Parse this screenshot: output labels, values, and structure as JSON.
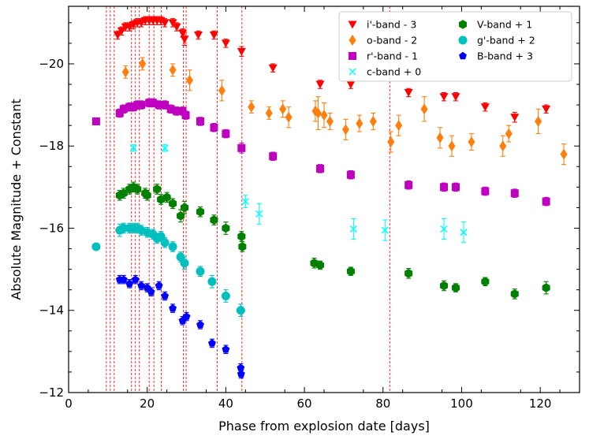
{
  "chart_data": {
    "type": "scatter",
    "title": "",
    "xlabel": "Phase from explosion date [days]",
    "ylabel": "Absolute Magnitude + Constant",
    "xlim": [
      0,
      130
    ],
    "ylim": [
      -12,
      -21.4
    ],
    "y_inverted": true,
    "legend_position": "top-right",
    "grid": false,
    "xticks": [
      0,
      20,
      40,
      60,
      80,
      100,
      120
    ],
    "xtick_labels": [
      "0",
      "20",
      "40",
      "60",
      "80",
      "100",
      "120"
    ],
    "yticks": [
      -20,
      -18,
      -16,
      -14,
      -12
    ],
    "ytick_labels": [
      "−20",
      "−18",
      "−16",
      "−14",
      "−12"
    ],
    "vlines": [
      9.6,
      10.6,
      11.6,
      16.0,
      17.0,
      18.0,
      20.5,
      21.7,
      23.6,
      29.2,
      29.9,
      37.8,
      44.1,
      81.7
    ],
    "series": [
      {
        "name": "i'-band - 3",
        "color": "#ff0000",
        "marker": "triangle-down",
        "points": [
          [
            12.5,
            -20.7,
            0.1
          ],
          [
            13.5,
            -20.8,
            0.1
          ],
          [
            14.5,
            -20.9,
            0.1
          ],
          [
            15.5,
            -20.9,
            0.1
          ],
          [
            16.5,
            -20.95,
            0.1
          ],
          [
            17.5,
            -21.0,
            0.1
          ],
          [
            18.5,
            -21.0,
            0.1
          ],
          [
            19.5,
            -21.05,
            0.1
          ],
          [
            20.5,
            -21.05,
            0.1
          ],
          [
            21.5,
            -21.05,
            0.1
          ],
          [
            22.5,
            -21.05,
            0.1
          ],
          [
            23.5,
            -21.05,
            0.1
          ],
          [
            24.5,
            -21.0,
            0.1
          ],
          [
            26.5,
            -21.0,
            0.1
          ],
          [
            27.5,
            -20.9,
            0.1
          ],
          [
            29.0,
            -20.75,
            0.1
          ],
          [
            29.5,
            -20.6,
            0.15
          ],
          [
            33.0,
            -20.7,
            0.1
          ],
          [
            37.0,
            -20.7,
            0.1
          ],
          [
            40.0,
            -20.5,
            0.1
          ],
          [
            44.0,
            -20.3,
            0.12
          ],
          [
            52.0,
            -19.9,
            0.1
          ],
          [
            64.0,
            -19.5,
            0.1
          ],
          [
            71.8,
            -19.5,
            0.1
          ],
          [
            86.5,
            -19.3,
            0.1
          ],
          [
            95.5,
            -19.2,
            0.1
          ],
          [
            98.5,
            -19.2,
            0.1
          ],
          [
            106.0,
            -18.95,
            0.1
          ],
          [
            113.5,
            -18.7,
            0.12
          ],
          [
            121.5,
            -18.9,
            0.1
          ]
        ]
      },
      {
        "name": "o-band - 2",
        "color": "#ff7f0e",
        "marker": "diamond",
        "points": [
          [
            14.5,
            -19.8,
            0.15
          ],
          [
            18.8,
            -20.0,
            0.15
          ],
          [
            26.5,
            -19.85,
            0.15
          ],
          [
            30.8,
            -19.6,
            0.25
          ],
          [
            39.0,
            -19.35,
            0.25
          ],
          [
            46.5,
            -18.95,
            0.15
          ],
          [
            51.0,
            -18.8,
            0.15
          ],
          [
            54.5,
            -18.9,
            0.2
          ],
          [
            56.0,
            -18.7,
            0.25
          ],
          [
            62.8,
            -18.85,
            0.25
          ],
          [
            63.5,
            -18.8,
            0.4
          ],
          [
            65.0,
            -18.75,
            0.3
          ],
          [
            66.5,
            -18.6,
            0.2
          ],
          [
            70.5,
            -18.4,
            0.25
          ],
          [
            74.0,
            -18.55,
            0.2
          ],
          [
            77.5,
            -18.6,
            0.2
          ],
          [
            82.0,
            -18.1,
            0.25
          ],
          [
            84.0,
            -18.5,
            0.25
          ],
          [
            90.5,
            -18.9,
            0.3
          ],
          [
            94.5,
            -18.2,
            0.25
          ],
          [
            97.5,
            -18.0,
            0.25
          ],
          [
            102.5,
            -18.1,
            0.2
          ],
          [
            110.5,
            -18.0,
            0.25
          ],
          [
            112.0,
            -18.3,
            0.2
          ],
          [
            119.5,
            -18.6,
            0.3
          ],
          [
            126.0,
            -17.8,
            0.25
          ]
        ]
      },
      {
        "name": "r'-band - 1",
        "color": "#bf00bf",
        "marker": "square",
        "points": [
          [
            7.0,
            -18.6,
            0
          ],
          [
            13.0,
            -18.8,
            0.1
          ],
          [
            14.0,
            -18.9,
            0.1
          ],
          [
            15.5,
            -18.95,
            0.1
          ],
          [
            16.5,
            -18.95,
            0.1
          ],
          [
            17.5,
            -19.0,
            0.1
          ],
          [
            18.5,
            -19.0,
            0.1
          ],
          [
            20.5,
            -19.05,
            0.1
          ],
          [
            21.5,
            -19.05,
            0.1
          ],
          [
            23.0,
            -19.0,
            0.1
          ],
          [
            24.5,
            -19.0,
            0.1
          ],
          [
            26.0,
            -18.9,
            0.1
          ],
          [
            27.5,
            -18.85,
            0.1
          ],
          [
            29.0,
            -18.85,
            0.1
          ],
          [
            29.8,
            -18.75,
            0.1
          ],
          [
            33.5,
            -18.6,
            0.1
          ],
          [
            37.0,
            -18.45,
            0.1
          ],
          [
            40.0,
            -18.3,
            0.1
          ],
          [
            44.0,
            -17.95,
            0.12
          ],
          [
            52.0,
            -17.75,
            0.1
          ],
          [
            64.0,
            -17.45,
            0.1
          ],
          [
            71.8,
            -17.3,
            0.1
          ],
          [
            86.5,
            -17.05,
            0.1
          ],
          [
            95.5,
            -17.0,
            0.1
          ],
          [
            98.5,
            -17.0,
            0.1
          ],
          [
            106.0,
            -16.9,
            0.1
          ],
          [
            113.5,
            -16.85,
            0.1
          ],
          [
            121.5,
            -16.65,
            0.1
          ]
        ]
      },
      {
        "name": "c-band + 0",
        "color": "#00ffff",
        "marker": "x",
        "points": [
          [
            16.5,
            -17.95,
            0.08
          ],
          [
            24.5,
            -17.95,
            0.08
          ],
          [
            45.0,
            -16.65,
            0.15
          ],
          [
            48.5,
            -16.35,
            0.25
          ],
          [
            72.5,
            -15.98,
            0.25
          ],
          [
            80.5,
            -15.95,
            0.25
          ],
          [
            95.5,
            -15.98,
            0.25
          ],
          [
            100.5,
            -15.9,
            0.25
          ]
        ]
      },
      {
        "name": "V-band + 1",
        "color": "#008000",
        "marker": "hexagon",
        "points": [
          [
            13.0,
            -16.8,
            0.12
          ],
          [
            14.0,
            -16.85,
            0.12
          ],
          [
            15.5,
            -16.95,
            0.12
          ],
          [
            16.5,
            -17.0,
            0.12
          ],
          [
            17.5,
            -16.95,
            0.12
          ],
          [
            19.5,
            -16.85,
            0.12
          ],
          [
            20.0,
            -16.8,
            0.12
          ],
          [
            22.5,
            -16.95,
            0.12
          ],
          [
            23.5,
            -16.7,
            0.12
          ],
          [
            25.0,
            -16.75,
            0.12
          ],
          [
            26.5,
            -16.6,
            0.12
          ],
          [
            28.5,
            -16.3,
            0.15
          ],
          [
            29.5,
            -16.5,
            0.15
          ],
          [
            33.5,
            -16.4,
            0.12
          ],
          [
            37.0,
            -16.2,
            0.12
          ],
          [
            40.0,
            -16.0,
            0.15
          ],
          [
            44.0,
            -15.8,
            0.12
          ],
          [
            44.2,
            -15.55,
            0.12
          ],
          [
            62.5,
            -15.15,
            0.12
          ],
          [
            64.0,
            -15.1,
            0.1
          ],
          [
            71.8,
            -14.95,
            0.1
          ],
          [
            86.5,
            -14.9,
            0.12
          ],
          [
            95.5,
            -14.6,
            0.12
          ],
          [
            98.5,
            -14.55,
            0.1
          ],
          [
            106.0,
            -14.7,
            0.1
          ],
          [
            113.5,
            -14.4,
            0.12
          ],
          [
            121.5,
            -14.55,
            0.15
          ]
        ]
      },
      {
        "name": "g'-band + 2",
        "color": "#00bfbf",
        "marker": "circle",
        "points": [
          [
            7.0,
            -15.55,
            0
          ],
          [
            13.0,
            -15.95,
            0.15
          ],
          [
            14.0,
            -16.0,
            0.12
          ],
          [
            15.5,
            -16.0,
            0.12
          ],
          [
            16.5,
            -16.0,
            0.12
          ],
          [
            17.5,
            -16.0,
            0.12
          ],
          [
            18.5,
            -15.95,
            0.12
          ],
          [
            20.0,
            -15.9,
            0.12
          ],
          [
            21.5,
            -15.85,
            0.12
          ],
          [
            22.5,
            -15.75,
            0.12
          ],
          [
            23.5,
            -15.8,
            0.12
          ],
          [
            24.5,
            -15.65,
            0.12
          ],
          [
            26.5,
            -15.55,
            0.12
          ],
          [
            28.5,
            -15.3,
            0.12
          ],
          [
            29.5,
            -15.15,
            0.15
          ],
          [
            33.5,
            -14.95,
            0.12
          ],
          [
            36.5,
            -14.7,
            0.15
          ],
          [
            40.0,
            -14.35,
            0.15
          ],
          [
            43.8,
            -14.0,
            0.15
          ]
        ]
      },
      {
        "name": "B-band + 3",
        "color": "#0000ff",
        "marker": "pentagon",
        "points": [
          [
            13.0,
            -14.75,
            0.1
          ],
          [
            14.0,
            -14.75,
            0.1
          ],
          [
            15.5,
            -14.65,
            0.1
          ],
          [
            17.0,
            -14.75,
            0.1
          ],
          [
            18.5,
            -14.6,
            0.1
          ],
          [
            20.0,
            -14.55,
            0.1
          ],
          [
            21.0,
            -14.45,
            0.1
          ],
          [
            23.0,
            -14.6,
            0.1
          ],
          [
            24.5,
            -14.35,
            0.1
          ],
          [
            26.5,
            -14.05,
            0.1
          ],
          [
            29.0,
            -13.75,
            0.1
          ],
          [
            30.0,
            -13.85,
            0.1
          ],
          [
            33.5,
            -13.65,
            0.1
          ],
          [
            36.5,
            -13.2,
            0.1
          ],
          [
            40.0,
            -13.05,
            0.1
          ],
          [
            43.8,
            -12.6,
            0.1
          ],
          [
            43.9,
            -12.45,
            0.1
          ]
        ]
      }
    ]
  }
}
